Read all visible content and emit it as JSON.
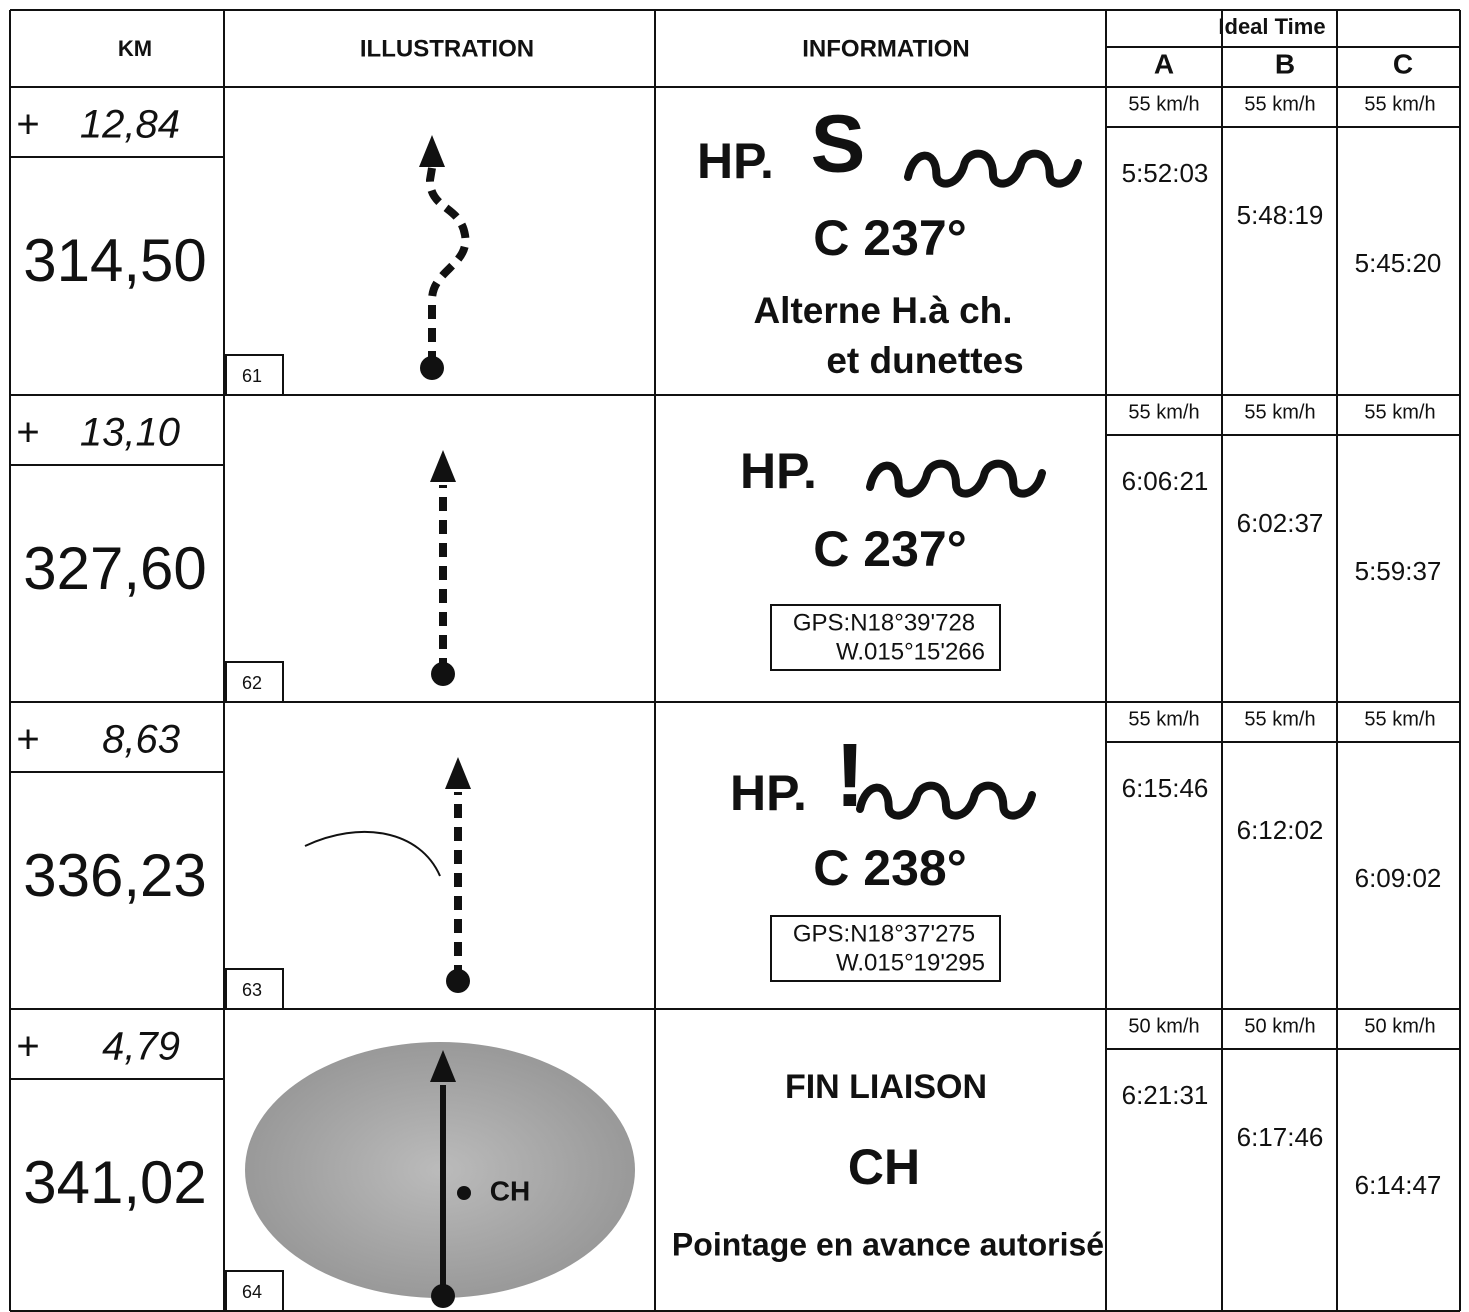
{
  "header": {
    "km": "KM",
    "illustration": "ILLUSTRATION",
    "information": "INFORMATION",
    "ideal_time": "Ideal Time",
    "columns": [
      "A",
      "B",
      "C"
    ]
  },
  "rows": [
    {
      "sign": "+",
      "partial": "12,84",
      "total": "314,50",
      "number": "61",
      "info": {
        "hp": "HP.",
        "symbol": "S",
        "cap": "C 237°",
        "notes": [
          "Alterne H.à ch.",
          "et dunettes"
        ]
      },
      "speeds": [
        "55 km/h",
        "55 km/h",
        "55 km/h"
      ],
      "times": [
        "5:52:03",
        "5:48:19",
        "5:45:20"
      ]
    },
    {
      "sign": "+",
      "partial": "13,10",
      "total": "327,60",
      "number": "62",
      "info": {
        "hp": "HP.",
        "cap": "C 237°",
        "gps": [
          "GPS:N18°39'728",
          "W.015°15'266"
        ]
      },
      "speeds": [
        "55 km/h",
        "55 km/h",
        "55 km/h"
      ],
      "times": [
        "6:06:21",
        "6:02:37",
        "5:59:37"
      ]
    },
    {
      "sign": "+",
      "partial": "8,63",
      "total": "336,23",
      "number": "63",
      "info": {
        "hp": "HP.",
        "symbol": "!",
        "cap": "C 238°",
        "gps": [
          "GPS:N18°37'275",
          "W.015°19'295"
        ]
      },
      "speeds": [
        "55 km/h",
        "55 km/h",
        "55 km/h"
      ],
      "times": [
        "6:15:46",
        "6:12:02",
        "6:09:02"
      ]
    },
    {
      "sign": "+",
      "partial": "4,79",
      "total": "341,02",
      "number": "64",
      "illustration_label": "CH",
      "info": {
        "lines": [
          "FIN LIAISON",
          "CH",
          "Pointage en avance autorisé"
        ]
      },
      "speeds": [
        "50 km/h",
        "50 km/h",
        "50 km/h"
      ],
      "times": [
        "6:21:31",
        "6:17:46",
        "6:14:47"
      ]
    }
  ]
}
